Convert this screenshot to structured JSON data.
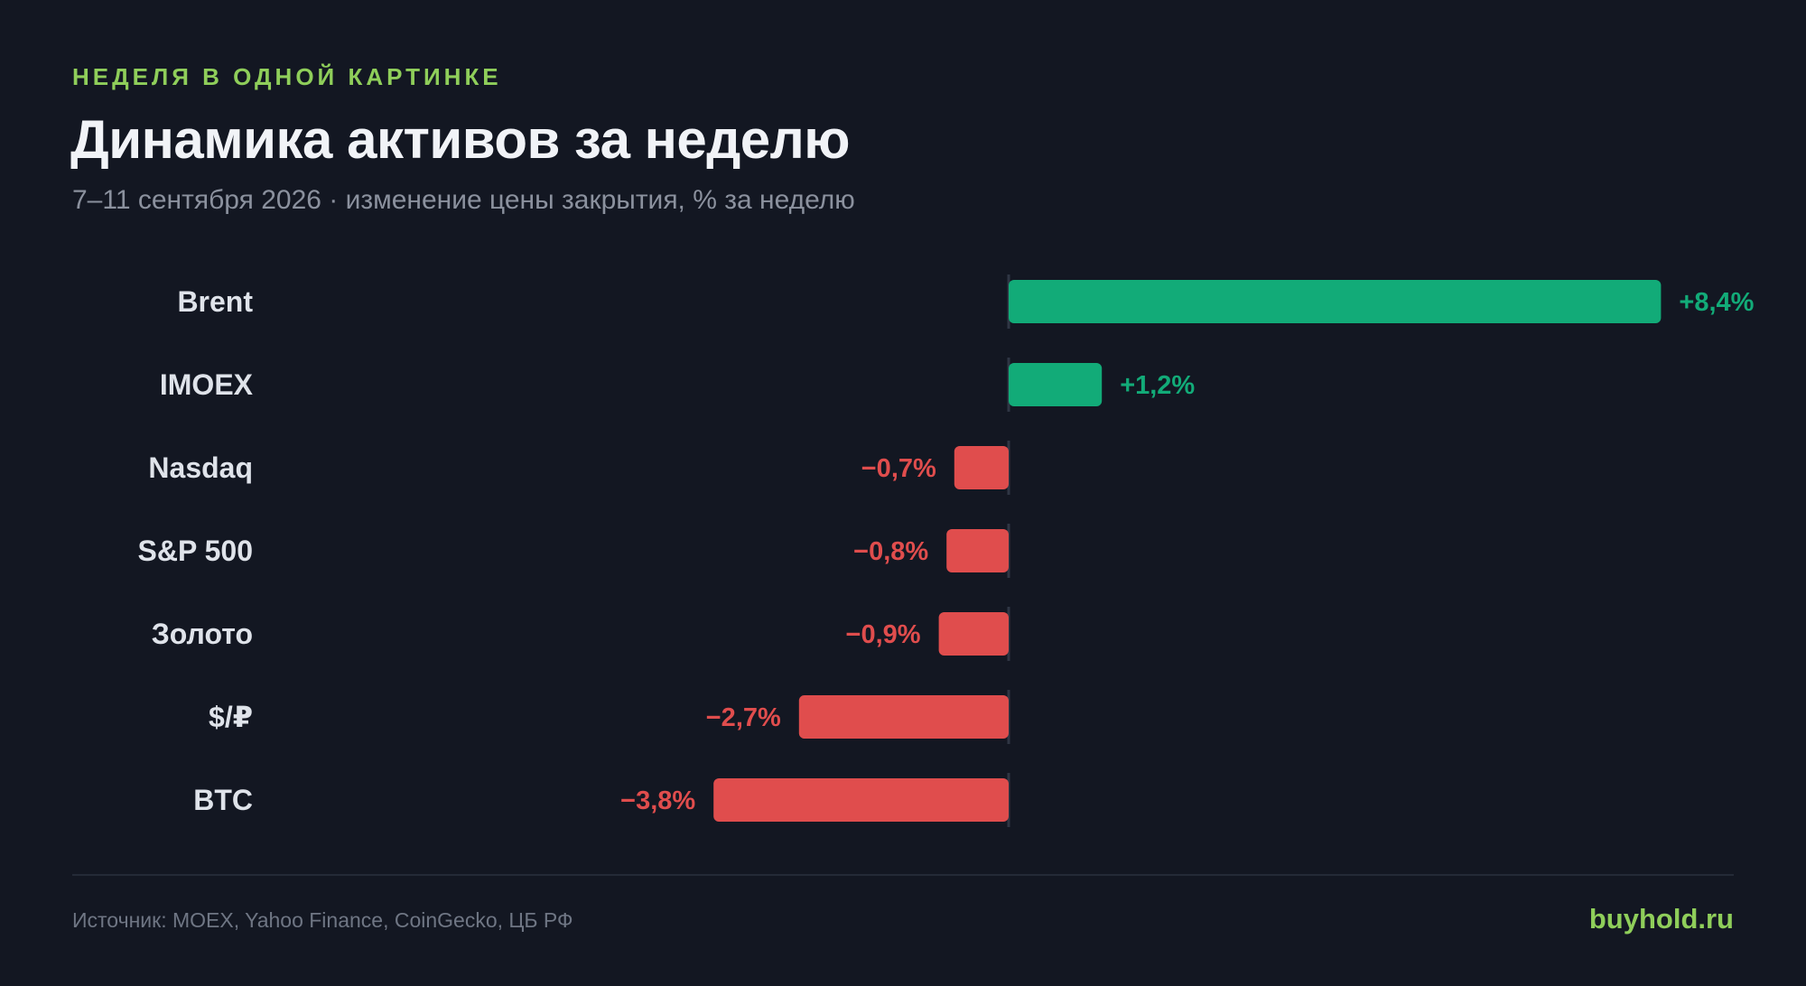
{
  "header": {
    "kicker": "НЕДЕЛЯ В ОДНОЙ КАРТИНКЕ",
    "title": "Динамика активов за неделю",
    "subtitle": "7–11 сентября 2026 · изменение цены закрытия, % за неделю"
  },
  "chart_data": {
    "type": "bar",
    "orientation": "horizontal",
    "categories": [
      "Brent",
      "IMOEX",
      "Nasdaq",
      "S&P 500",
      "Золото",
      "$/₽",
      "BTC"
    ],
    "values": [
      8.4,
      1.2,
      -0.7,
      -0.8,
      -0.9,
      -2.7,
      -3.8
    ],
    "value_labels": [
      "+8,4%",
      "+1,2%",
      "−0,7%",
      "−0,8%",
      "−0,9%",
      "−2,7%",
      "−3,8%"
    ],
    "positive_color": "#12ab78",
    "negative_color": "#e04d4d",
    "zero_line": true,
    "grid": false
  },
  "footer": {
    "source": "Источник: MOEX, Yahoo Finance, CoinGecko, ЦБ РФ",
    "brand": "buyhold.ru"
  }
}
